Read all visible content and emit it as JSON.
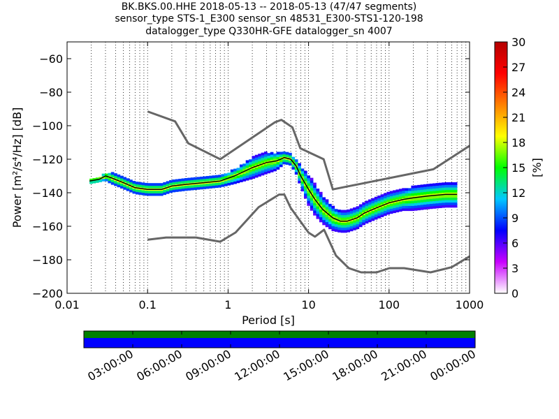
{
  "figure": {
    "title_lines": [
      "BK.BKS.00.HHE   2018-05-13 -- 2018-05-13  (47/47 segments)",
      "sensor_type STS-1_E300 sensor_sn 48531_E300-STS1-120-198",
      "datalogger_type Q330HR-GFE datalogger_sn 4007"
    ]
  },
  "chart_data": {
    "type": "heatmap",
    "title": "",
    "xlabel": "Period [s]",
    "ylabel": "Power [m²/s⁴/Hz] [dB]",
    "x_scale": "log",
    "xlim": [
      0.01,
      1000
    ],
    "ylim": [
      -200,
      -50
    ],
    "x_tick_labels": [
      "0.01",
      "0.1",
      "1",
      "10",
      "100",
      "1000"
    ],
    "y_ticks": [
      -60,
      -80,
      -100,
      -120,
      -140,
      -160,
      -180,
      -200
    ],
    "grid": "dotted vertical lines at decade subdivisions",
    "colorbar": {
      "label": "[%]",
      "range": [
        0,
        30
      ],
      "ticks": [
        0,
        3,
        6,
        9,
        12,
        15,
        18,
        21,
        24,
        27,
        30
      ],
      "colormap": [
        "#ffffff",
        "#c800ff",
        "#0000ff",
        "#00c8ff",
        "#00ff00",
        "#ffff00",
        "#ff8000",
        "#ff0000",
        "#b40000"
      ]
    },
    "series": [
      {
        "role": "new-high-noise-model",
        "color": "#666666",
        "x": [
          0.1,
          0.22,
          0.32,
          0.8,
          3.8,
          4.6,
          6.3,
          7.9,
          15.4,
          20,
          354.8,
          1000
        ],
        "y": [
          -91.5,
          -97.4,
          -110.5,
          -120,
          -98,
          -96.5,
          -101,
          -113.5,
          -120,
          -138,
          -126,
          -112
        ]
      },
      {
        "role": "new-low-noise-model",
        "color": "#666666",
        "x": [
          0.1,
          0.17,
          0.4,
          0.8,
          1.24,
          2.4,
          4.3,
          5,
          6,
          10,
          12,
          15.6,
          21.9,
          31.6,
          45,
          70,
          101,
          154,
          328,
          600,
          1000
        ],
        "y": [
          -168,
          -166.7,
          -166.7,
          -169.2,
          -163.7,
          -148.6,
          -141.1,
          -141.1,
          -149,
          -163.8,
          -166.2,
          -162.1,
          -177.5,
          -185,
          -187.5,
          -187.5,
          -185,
          -185,
          -187.5,
          -184.4,
          -178
        ]
      },
      {
        "role": "mode-curve",
        "color": "#000000",
        "x": [
          0.019,
          0.025,
          0.03,
          0.035,
          0.05,
          0.07,
          0.1,
          0.15,
          0.2,
          0.3,
          0.5,
          0.8,
          1.2,
          2,
          3,
          4,
          4.5,
          5,
          6,
          7,
          8,
          10,
          12,
          15,
          20,
          25,
          30,
          40,
          50,
          70,
          100,
          150,
          200,
          300,
          500,
          700
        ],
        "y": [
          -133,
          -132,
          -130,
          -131,
          -134,
          -137,
          -138,
          -138,
          -136,
          -135,
          -134,
          -133,
          -130,
          -125,
          -122,
          -121,
          -120,
          -119,
          -120,
          -124,
          -130,
          -138,
          -144,
          -150,
          -155,
          -157,
          -157,
          -155,
          -152,
          -149,
          -146,
          -144,
          -143,
          -142,
          -141,
          -141
        ]
      }
    ],
    "density_band": {
      "x": [
        0.019,
        0.025,
        0.03,
        0.035,
        0.05,
        0.07,
        0.1,
        0.15,
        0.2,
        0.3,
        0.5,
        0.8,
        1.2,
        2,
        3,
        4,
        4.5,
        5,
        6,
        7,
        8,
        10,
        12,
        15,
        20,
        25,
        30,
        40,
        50,
        70,
        100,
        150,
        200,
        300,
        500,
        700
      ],
      "spread_db": [
        1,
        1,
        2,
        3,
        3,
        3,
        3,
        3,
        3,
        3,
        3,
        3,
        4,
        6,
        6,
        5,
        4,
        3,
        3,
        4,
        6,
        9,
        9,
        8,
        7,
        6,
        6,
        6,
        6,
        6,
        6,
        6,
        7,
        7,
        7,
        7
      ]
    }
  },
  "time_coverage": {
    "tick_labels": [
      "03:00:00",
      "06:00:00",
      "09:00:00",
      "12:00:00",
      "15:00:00",
      "18:00:00",
      "21:00:00",
      "00:00:00"
    ],
    "top_color": "#008000",
    "bottom_color": "#0000ff"
  }
}
